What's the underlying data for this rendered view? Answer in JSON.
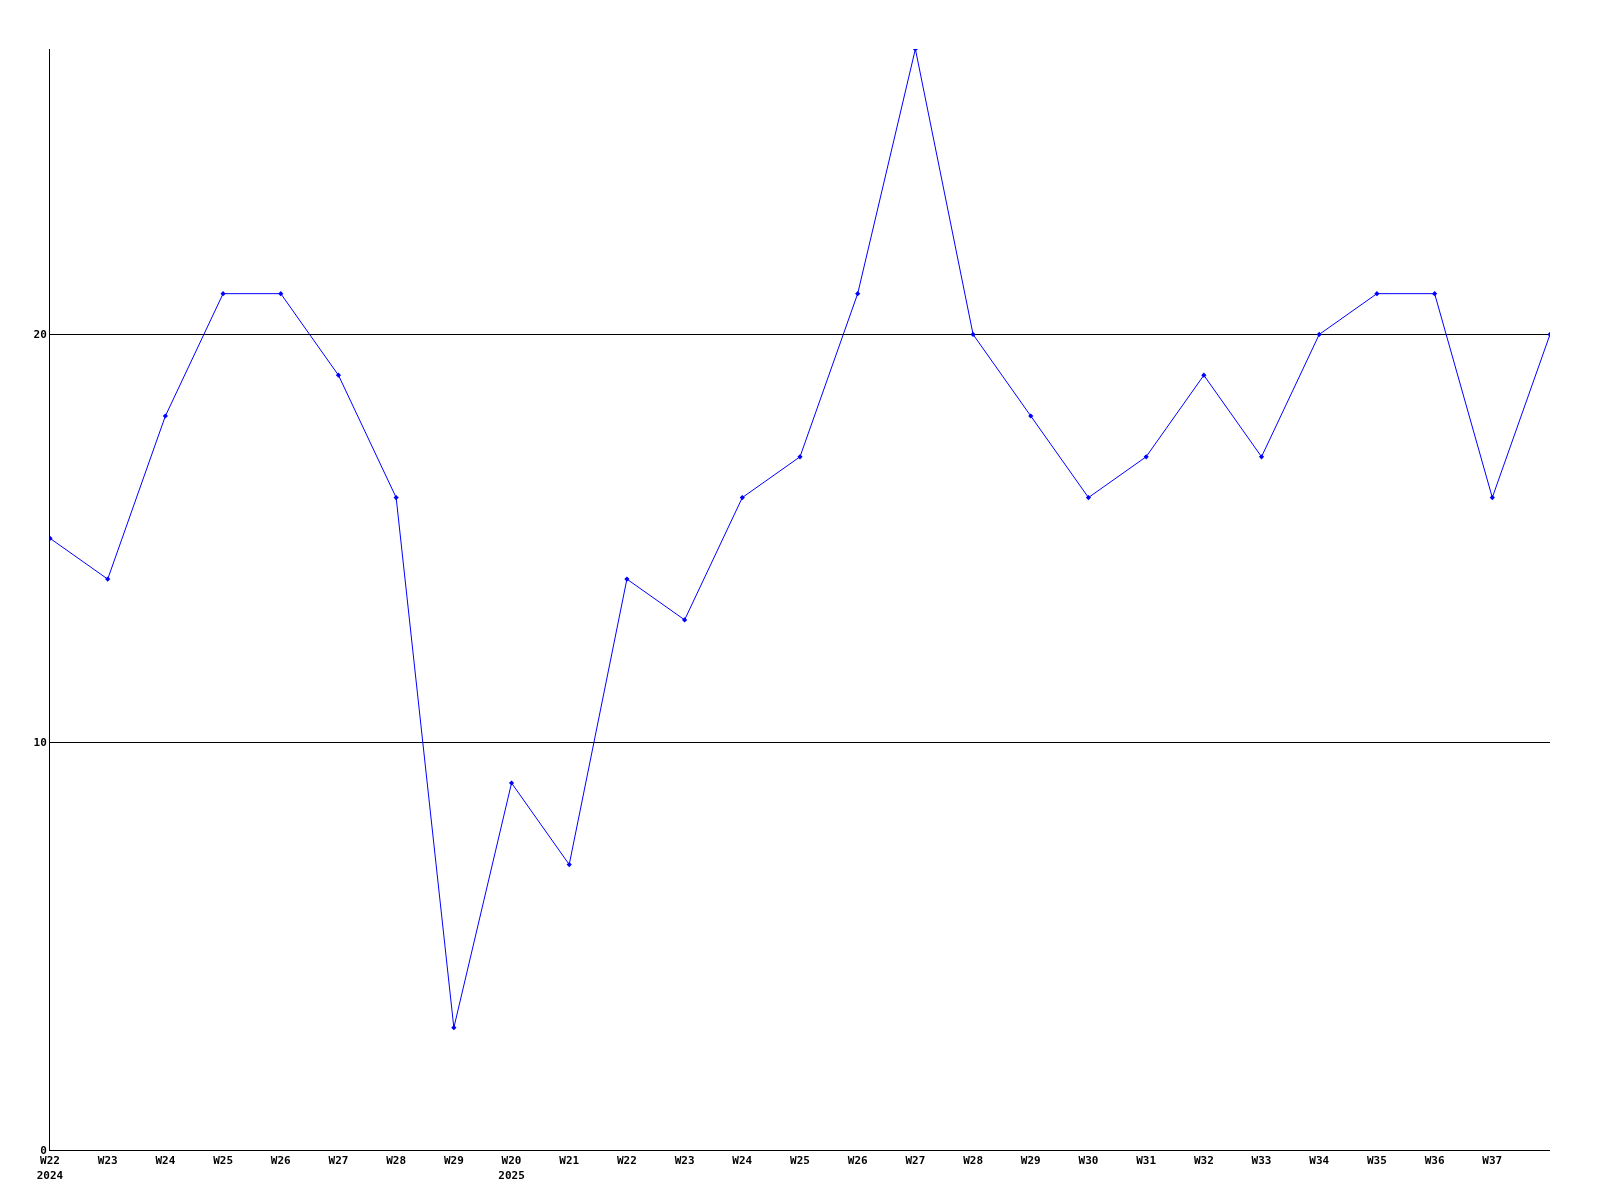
{
  "chart_data": {
    "type": "line",
    "categories": [
      "W22\n2024",
      "W23",
      "W24",
      "W25",
      "W26",
      "W27",
      "W28",
      "W29",
      "W20\n2025",
      "W21",
      "W22",
      "W23",
      "W24",
      "W25",
      "W26",
      "W27",
      "W28",
      "W29",
      "W30",
      "W31",
      "W32",
      "W33",
      "W34",
      "W35",
      "W36",
      "W37",
      null
    ],
    "series": [
      {
        "color": "#0000ff",
        "values": [
          15,
          14,
          18,
          21,
          21,
          19,
          16,
          3,
          9,
          7,
          14,
          13,
          16,
          17,
          21,
          27,
          20,
          18,
          16,
          17,
          19,
          17,
          20,
          21,
          21,
          16,
          20
        ]
      }
    ],
    "ylim": [
      0,
      27
    ],
    "yticks": [
      0,
      10,
      20
    ],
    "grid": "y",
    "marker": "diamond",
    "line_style": "solid"
  }
}
